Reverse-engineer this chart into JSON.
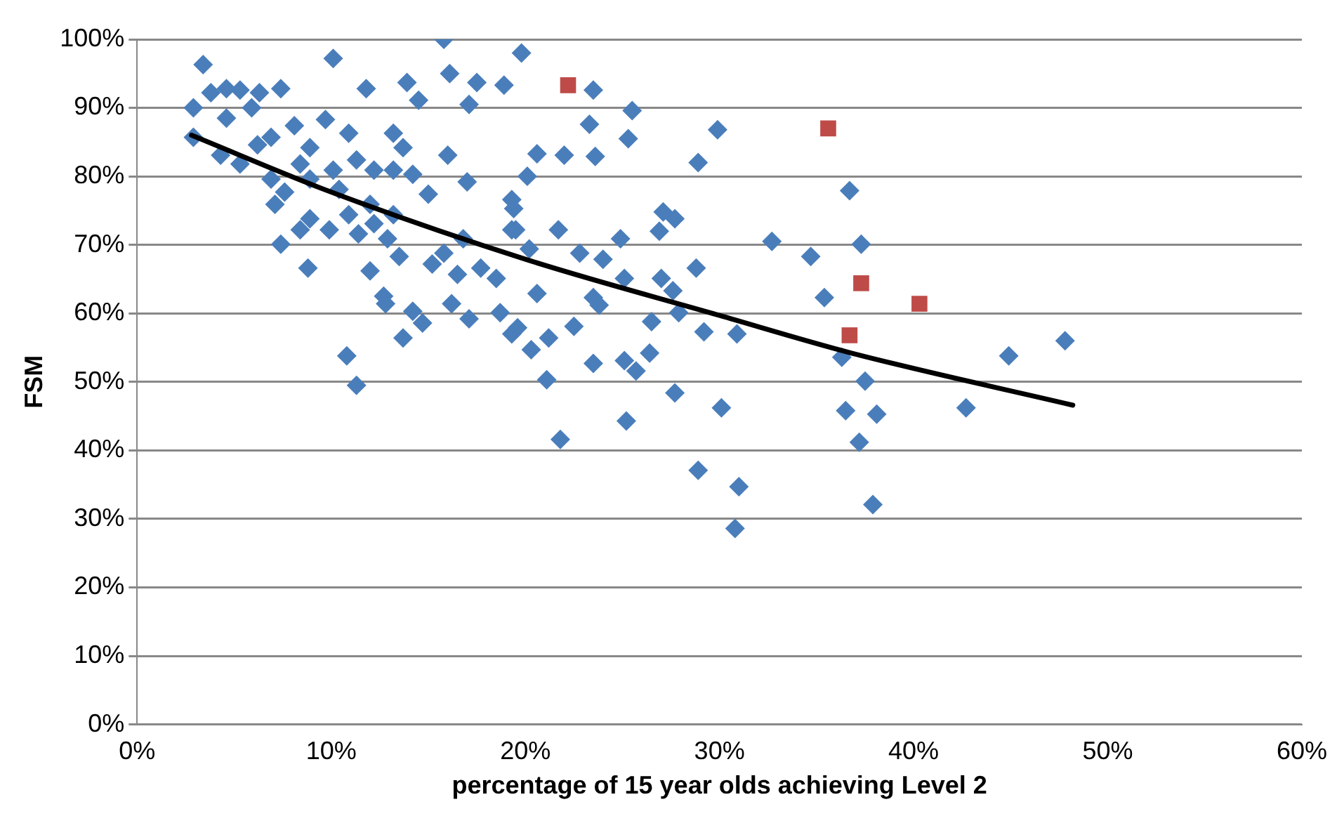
{
  "chart_data": {
    "type": "scatter",
    "xlabel": "percentage of 15 year olds achieving Level 2",
    "ylabel": "FSM",
    "xlim": [
      0,
      60
    ],
    "xticks": [
      {
        "value": 0,
        "label": "0%"
      },
      {
        "value": 10,
        "label": "10%"
      },
      {
        "value": 20,
        "label": "20%"
      },
      {
        "value": 30,
        "label": "30%"
      },
      {
        "value": 40,
        "label": "40%"
      },
      {
        "value": 50,
        "label": "50%"
      },
      {
        "value": 60,
        "label": "60%"
      }
    ],
    "ylim": [
      0,
      100
    ],
    "yticks": [
      {
        "value": 0,
        "label": "0%"
      },
      {
        "value": 10,
        "label": "10%"
      },
      {
        "value": 20,
        "label": "20%"
      },
      {
        "value": 30,
        "label": "30%"
      },
      {
        "value": 40,
        "label": "40%"
      },
      {
        "value": 50,
        "label": "50%"
      },
      {
        "value": 60,
        "label": "60%"
      },
      {
        "value": 70,
        "label": "70%"
      },
      {
        "value": 80,
        "label": "80%"
      },
      {
        "value": 90,
        "label": "90%"
      },
      {
        "value": 100,
        "label": "100%"
      }
    ],
    "grid": "y",
    "legend": false,
    "series": [
      {
        "color": "#4a7ebb",
        "marker": "diamond",
        "x": [
          19.8,
          23.5,
          25.5,
          23.3,
          25.3,
          20.6,
          22.0,
          23.6,
          20.1,
          29.9,
          28.9,
          36.7,
          19.4,
          19.5,
          21.7,
          27.1,
          27.7,
          26.9,
          32.7,
          34.7,
          37.3,
          24.9,
          20.2,
          22.8,
          24.0,
          28.8,
          25.1,
          27.0,
          27.6,
          20.6,
          35.4,
          23.8,
          23.5,
          26.5,
          27.9,
          22.5,
          19.6,
          21.2,
          20.3,
          29.2,
          30.9,
          23.5,
          25.1,
          26.4,
          25.7,
          36.3,
          44.9,
          47.8,
          21.1,
          27.7,
          30.1,
          37.5,
          25.2,
          36.5,
          38.1,
          42.7,
          21.8,
          37.2,
          28.9,
          31.0,
          37.9,
          30.8,
          3.4,
          10.1,
          15.8,
          16.1,
          11.8,
          13.9,
          17.5,
          18.9,
          14.5,
          17.1,
          7.4,
          2.9,
          3.8,
          4.6,
          5.3,
          6.3,
          5.9,
          4.6,
          2.9,
          4.3,
          5.3,
          6.2,
          6.9,
          8.1,
          9.7,
          10.9,
          13.2,
          13.7,
          16.0,
          17.0,
          8.9,
          8.4,
          6.9,
          7.6,
          7.1,
          8.9,
          10.1,
          11.3,
          12.2,
          13.2,
          14.2,
          15.0,
          8.9,
          8.4,
          9.9,
          10.9,
          10.4,
          12.0,
          12.2,
          13.2,
          12.9,
          11.4,
          7.4,
          8.8,
          12.0,
          13.5,
          15.2,
          15.8,
          16.8,
          16.5,
          17.7,
          18.5,
          12.7,
          12.8,
          14.2,
          14.7,
          16.2,
          17.1,
          18.7,
          13.7,
          10.8,
          11.3,
          19.3,
          19.3,
          19.3
        ],
        "values": [
          98.0,
          92.6,
          89.6,
          87.6,
          85.5,
          83.3,
          83.1,
          82.9,
          80.0,
          86.8,
          82.0,
          77.9,
          75.3,
          72.2,
          72.2,
          74.8,
          73.8,
          72.0,
          70.5,
          68.3,
          70.1,
          70.9,
          69.4,
          68.8,
          67.9,
          66.6,
          65.1,
          65.1,
          63.3,
          62.9,
          62.3,
          61.2,
          62.3,
          58.8,
          60.1,
          58.1,
          57.9,
          56.4,
          54.7,
          57.3,
          57.0,
          52.7,
          53.1,
          54.2,
          51.6,
          53.6,
          53.8,
          56.0,
          50.3,
          48.4,
          46.2,
          50.1,
          44.3,
          45.8,
          45.3,
          46.2,
          41.6,
          41.2,
          37.1,
          34.7,
          32.1,
          28.6,
          96.3,
          97.2,
          100.0,
          95.0,
          92.8,
          93.7,
          93.7,
          93.3,
          91.1,
          90.5,
          92.8,
          90.0,
          92.2,
          92.8,
          92.6,
          92.2,
          90.0,
          88.5,
          85.7,
          83.1,
          81.8,
          84.6,
          85.7,
          87.4,
          88.3,
          86.3,
          86.3,
          84.2,
          83.1,
          79.2,
          84.2,
          81.8,
          79.6,
          77.7,
          75.9,
          79.6,
          80.9,
          82.4,
          80.9,
          80.9,
          80.3,
          77.4,
          73.8,
          72.2,
          72.2,
          74.4,
          78.1,
          75.9,
          73.1,
          74.4,
          70.9,
          71.6,
          70.1,
          66.6,
          66.2,
          68.3,
          67.2,
          68.8,
          70.9,
          65.7,
          66.6,
          65.1,
          62.5,
          61.4,
          60.3,
          58.6,
          61.4,
          59.2,
          60.1,
          56.4,
          53.8,
          49.5,
          57.0,
          76.6,
          72.2
        ]
      },
      {
        "color": "#be4b48",
        "marker": "square",
        "x": [
          22.2,
          35.6,
          37.3,
          40.3,
          36.7
        ],
        "values": [
          93.3,
          87.0,
          64.4,
          61.4,
          56.8
        ]
      },
      {
        "type": "line",
        "color": "#000000",
        "marker": "none",
        "line_style": "solid",
        "x": [
          2.8,
          10,
          20,
          30,
          36.8,
          48.2
        ],
        "values": [
          86.0,
          77.7,
          67.9,
          59.7,
          54.2,
          46.6
        ]
      }
    ]
  }
}
